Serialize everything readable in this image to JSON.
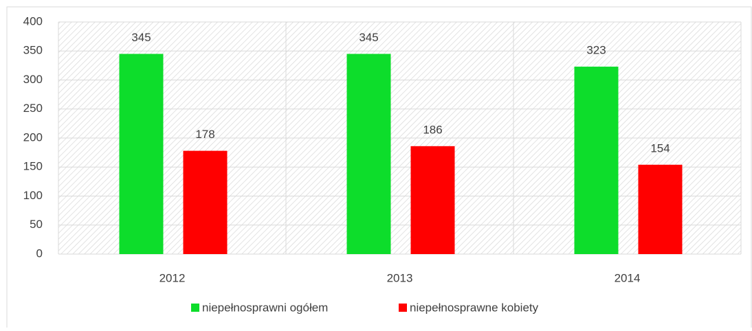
{
  "chart_data": {
    "type": "bar",
    "categories": [
      "2012",
      "2013",
      "2014"
    ],
    "series": [
      {
        "name": "niepełnosprawni ogółem",
        "color": "#0ddd2b",
        "values": [
          345,
          345,
          323
        ]
      },
      {
        "name": "niepełnosprawne kobiety",
        "color": "#ff0000",
        "values": [
          178,
          186,
          154
        ]
      }
    ],
    "ylim": [
      0,
      400
    ],
    "yticks": [
      0,
      50,
      100,
      150,
      200,
      250,
      300,
      350,
      400
    ],
    "grid": true,
    "legend": "bottom"
  }
}
